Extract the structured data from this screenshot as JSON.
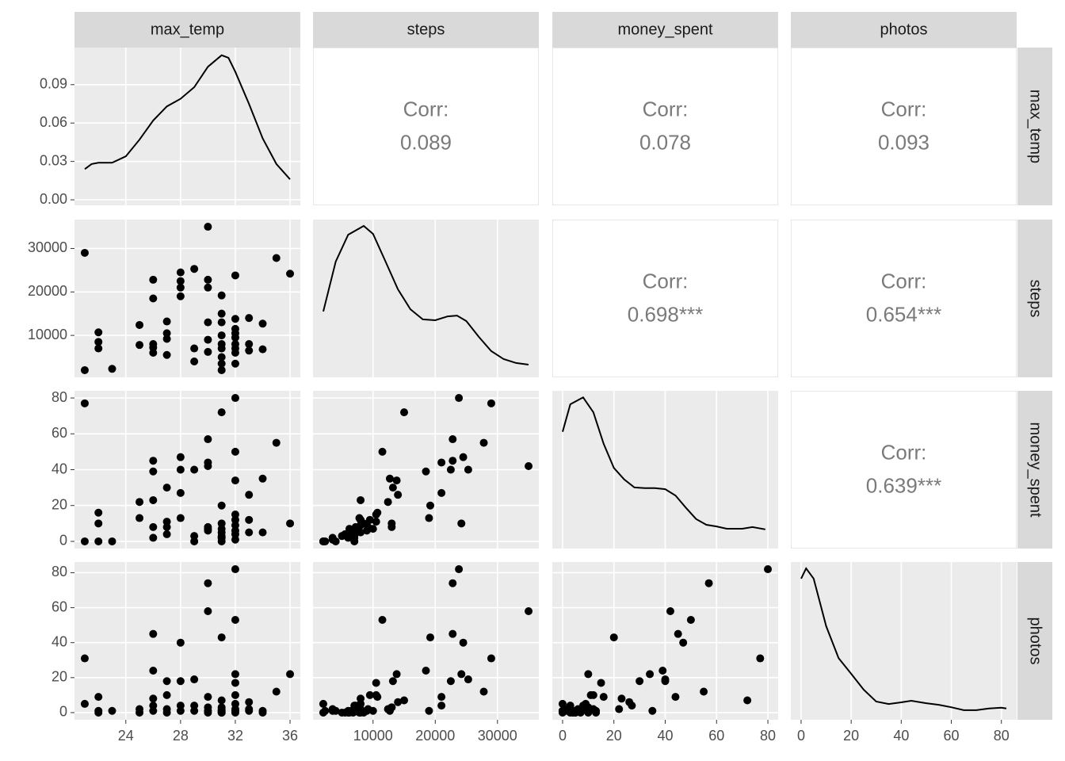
{
  "chart_data": {
    "type": "pairs",
    "variables": [
      {
        "name": "max_temp",
        "lim": [
          20.25,
          36.75
        ],
        "ticks": [
          24,
          28,
          32,
          36
        ]
      },
      {
        "name": "steps",
        "lim": [
          350,
          36650
        ],
        "ticks": [
          10000,
          20000,
          30000
        ]
      },
      {
        "name": "money_spent",
        "lim": [
          -4,
          84
        ],
        "ticks": [
          0,
          20,
          40,
          60,
          80
        ]
      },
      {
        "name": "photos",
        "lim": [
          -4.1,
          86.1
        ],
        "ticks": [
          0,
          20,
          40,
          60,
          80
        ]
      }
    ],
    "columns": [
      [
        21,
        21,
        22,
        22,
        22,
        23,
        25,
        25,
        26,
        26,
        26,
        26,
        26,
        27,
        27,
        27,
        27,
        28,
        28,
        28,
        28,
        29,
        29,
        29,
        30,
        30,
        30,
        30,
        30,
        30,
        31,
        31,
        31,
        31,
        31,
        31,
        31,
        31,
        31,
        32,
        32,
        32,
        32,
        32,
        32,
        32,
        32,
        32,
        33,
        33,
        33,
        34,
        34,
        35,
        36
      ],
      [
        29000,
        2000,
        10700,
        8500,
        7000,
        2300,
        12400,
        7800,
        22800,
        18500,
        8000,
        7200,
        6000,
        13200,
        10500,
        9200,
        5500,
        24500,
        22500,
        21000,
        19000,
        25300,
        7000,
        4000,
        35000,
        22800,
        21000,
        13000,
        9000,
        6200,
        19200,
        15000,
        13000,
        10000,
        8000,
        7000,
        5000,
        3500,
        2000,
        23800,
        13800,
        11500,
        10500,
        9500,
        8000,
        7000,
        6000,
        3500,
        14000,
        8000,
        6500,
        12700,
        6800,
        27800,
        24200
      ],
      [
        77,
        0,
        16,
        10,
        0,
        0,
        22,
        13,
        45,
        39,
        23,
        8,
        2,
        30,
        11,
        8,
        4,
        47,
        40,
        27,
        13,
        40,
        3,
        0,
        42,
        57,
        44,
        8,
        6,
        7,
        20,
        72,
        10,
        7,
        5,
        2,
        3,
        2,
        0,
        80,
        34,
        50,
        15,
        12,
        9,
        6,
        4,
        1,
        26,
        12,
        5,
        35,
        5,
        55,
        10
      ],
      [
        31,
        5,
        9,
        0,
        1,
        1,
        2,
        0,
        45,
        24,
        8,
        4,
        1,
        18,
        10,
        2,
        0,
        40,
        18,
        4,
        1,
        19,
        4,
        1,
        58,
        74,
        9,
        3,
        1,
        0,
        43,
        7,
        3,
        1,
        0,
        1,
        0,
        2,
        0,
        82,
        22,
        53,
        17,
        10,
        5,
        2,
        0,
        1,
        6,
        2,
        1,
        1,
        0,
        12,
        22
      ]
    ],
    "densities": [
      {
        "x": [
          21,
          21.5,
          22,
          23,
          24,
          25,
          26,
          27,
          28,
          29,
          30,
          31,
          31.5,
          32,
          33,
          34,
          35,
          36
        ],
        "y": [
          0.024,
          0.028,
          0.029,
          0.029,
          0.034,
          0.047,
          0.062,
          0.073,
          0.079,
          0.088,
          0.104,
          0.113,
          0.111,
          0.1,
          0.075,
          0.048,
          0.028,
          0.016
        ],
        "ylim": [
          -0.0043,
          0.119
        ],
        "yticks": [
          {
            "value": 0,
            "label": "0.00"
          },
          0.03,
          0.06,
          0.09
        ]
      },
      {
        "x": [
          2000,
          4000,
          6000,
          8500,
          10000,
          12000,
          14000,
          16000,
          18000,
          20000,
          22000,
          23500,
          25000,
          27000,
          29000,
          31000,
          33000,
          35000
        ],
        "y": [
          2.13e-05,
          3.94e-05,
          4.91e-05,
          5.23e-05,
          4.94e-05,
          3.94e-05,
          2.93e-05,
          2.21e-05,
          1.84e-05,
          1.81e-05,
          1.95e-05,
          1.98e-05,
          1.78e-05,
          1.21e-05,
          6.9e-06,
          4e-06,
          2.6e-06,
          2e-06
        ],
        "ylim": [
          -2.6e-06,
          5.46e-05
        ]
      },
      {
        "x": [
          0,
          3,
          8,
          12,
          16,
          20,
          24,
          28,
          32,
          36,
          40,
          44,
          48,
          52,
          56,
          60,
          64,
          70,
          74,
          79
        ],
        "y": [
          0.0191,
          0.0239,
          0.0251,
          0.0225,
          0.017,
          0.0128,
          0.0108,
          0.0094,
          0.0093,
          0.0093,
          0.0091,
          0.008,
          0.0059,
          0.0039,
          0.0029,
          0.0026,
          0.0022,
          0.0022,
          0.0025,
          0.0021
        ],
        "ylim": [
          -0.00125,
          0.02625
        ]
      },
      {
        "x": [
          0,
          2,
          5,
          10,
          15,
          20,
          25,
          30,
          35,
          40,
          44,
          50,
          55,
          60,
          65,
          70,
          75,
          80,
          82
        ],
        "y": [
          0.0327,
          0.0352,
          0.0327,
          0.0211,
          0.0133,
          0.0095,
          0.0056,
          0.0027,
          0.0021,
          0.0025,
          0.0029,
          0.0023,
          0.0019,
          0.0013,
          0.0006,
          0.0006,
          0.001,
          0.0012,
          0.001
        ],
        "ylim": [
          -0.00175,
          0.03675
        ]
      }
    ],
    "corr_label": "Corr:",
    "correlations": [
      {
        "row": 0,
        "col": 1,
        "value": 0.089
      },
      {
        "row": 0,
        "col": 2,
        "value": 0.078
      },
      {
        "row": 0,
        "col": 3,
        "value": 0.093
      },
      {
        "row": 1,
        "col": 2,
        "value": {
          "value": 0.698,
          "label": "0.698***"
        }
      },
      {
        "row": 1,
        "col": 3,
        "value": {
          "value": 0.654,
          "label": "0.654***"
        }
      },
      {
        "row": 2,
        "col": 3,
        "value": {
          "value": 0.639,
          "label": "0.639***"
        }
      }
    ]
  }
}
